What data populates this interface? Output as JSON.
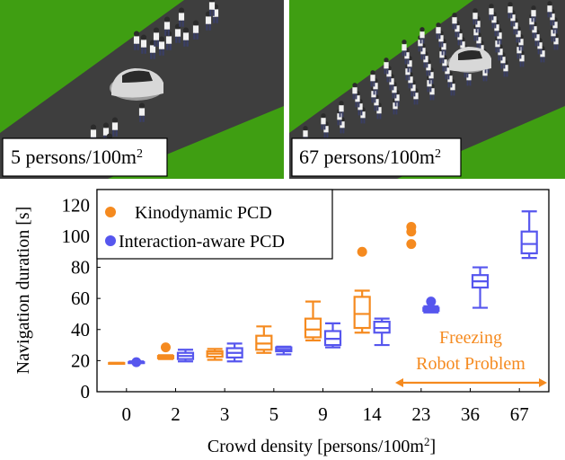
{
  "panels": [
    {
      "label": "5 persons/100m",
      "superscript": "2"
    },
    {
      "label": "67 persons/100m",
      "superscript": "2"
    }
  ],
  "colors": {
    "kinodynamic": "#F58A1F",
    "interaction": "#5656EE",
    "grass": "#3F9E12",
    "road": "#3E3E3E",
    "background": "#FFFFFF"
  },
  "icons": [
    "car-icon",
    "pedestrian-icon"
  ],
  "chart_data": {
    "type": "box",
    "xlabel": "Crowd density [persons/100m",
    "xlabel_sup": "2",
    "xlabel_end": "]",
    "ylabel": "Navigation duration [s]",
    "ylim": [
      0,
      130
    ],
    "yticks": [
      0,
      20,
      40,
      60,
      80,
      100,
      120
    ],
    "categories": [
      "0",
      "2",
      "3",
      "5",
      "9",
      "14",
      "23",
      "36",
      "67"
    ],
    "legend": {
      "position": "top-left"
    },
    "series": [
      {
        "name": "Kinodynamic PCD",
        "color": "#F58A1F",
        "boxes": [
          {
            "category": "0",
            "min": 18.5,
            "q1": 18.5,
            "median": 18.5,
            "q3": 18.5,
            "max": 18.5,
            "outliers": []
          },
          {
            "category": "2",
            "min": 21,
            "q1": 21.5,
            "median": 22,
            "q3": 23,
            "max": 23.5,
            "outliers": [
              28.5
            ]
          },
          {
            "category": "3",
            "min": 20.5,
            "q1": 22.5,
            "median": 24.5,
            "q3": 26,
            "max": 27.5,
            "outliers": []
          },
          {
            "category": "5",
            "min": 25,
            "q1": 27,
            "median": 31,
            "q3": 36,
            "max": 42,
            "outliers": []
          },
          {
            "category": "9",
            "min": 33,
            "q1": 35,
            "median": 40,
            "q3": 47,
            "max": 58,
            "outliers": []
          },
          {
            "category": "14",
            "min": 38,
            "q1": 41,
            "median": 50,
            "q3": 61,
            "max": 65,
            "outliers": [
              90
            ]
          },
          {
            "category": "23",
            "min": null,
            "q1": null,
            "median": null,
            "q3": null,
            "max": null,
            "outliers": [
              95,
              103,
              106
            ]
          }
        ]
      },
      {
        "name": "Interaction-aware PCD",
        "color": "#5656EE",
        "boxes": [
          {
            "category": "0",
            "min": 18.5,
            "q1": 18.5,
            "median": 19,
            "q3": 19,
            "max": 19.5,
            "outliers": [
              19
            ]
          },
          {
            "category": "2",
            "min": 19.5,
            "q1": 21,
            "median": 23,
            "q3": 25,
            "max": 27,
            "outliers": []
          },
          {
            "category": "3",
            "min": 19.5,
            "q1": 22,
            "median": 25,
            "q3": 28,
            "max": 31,
            "outliers": []
          },
          {
            "category": "5",
            "min": 24,
            "q1": 26,
            "median": 27,
            "q3": 28.5,
            "max": 29,
            "outliers": []
          },
          {
            "category": "9",
            "min": 28.5,
            "q1": 30,
            "median": 34,
            "q3": 39,
            "max": 44,
            "outliers": []
          },
          {
            "category": "14",
            "min": 30,
            "q1": 38,
            "median": 41,
            "q3": 45,
            "max": 47,
            "outliers": []
          },
          {
            "category": "23",
            "min": 51,
            "q1": 52,
            "median": 53,
            "q3": 54,
            "max": 55,
            "outliers": [
              58
            ]
          },
          {
            "category": "36",
            "min": 54,
            "q1": 67,
            "median": 71,
            "q3": 75,
            "max": 80,
            "outliers": []
          },
          {
            "category": "67",
            "min": 86,
            "q1": 89,
            "median": 95,
            "q3": 103,
            "max": 116,
            "outliers": []
          }
        ]
      }
    ],
    "annotation": {
      "lines": [
        "Freezing",
        "Robot Problem"
      ],
      "range_from": "23",
      "range_to": "67"
    }
  }
}
